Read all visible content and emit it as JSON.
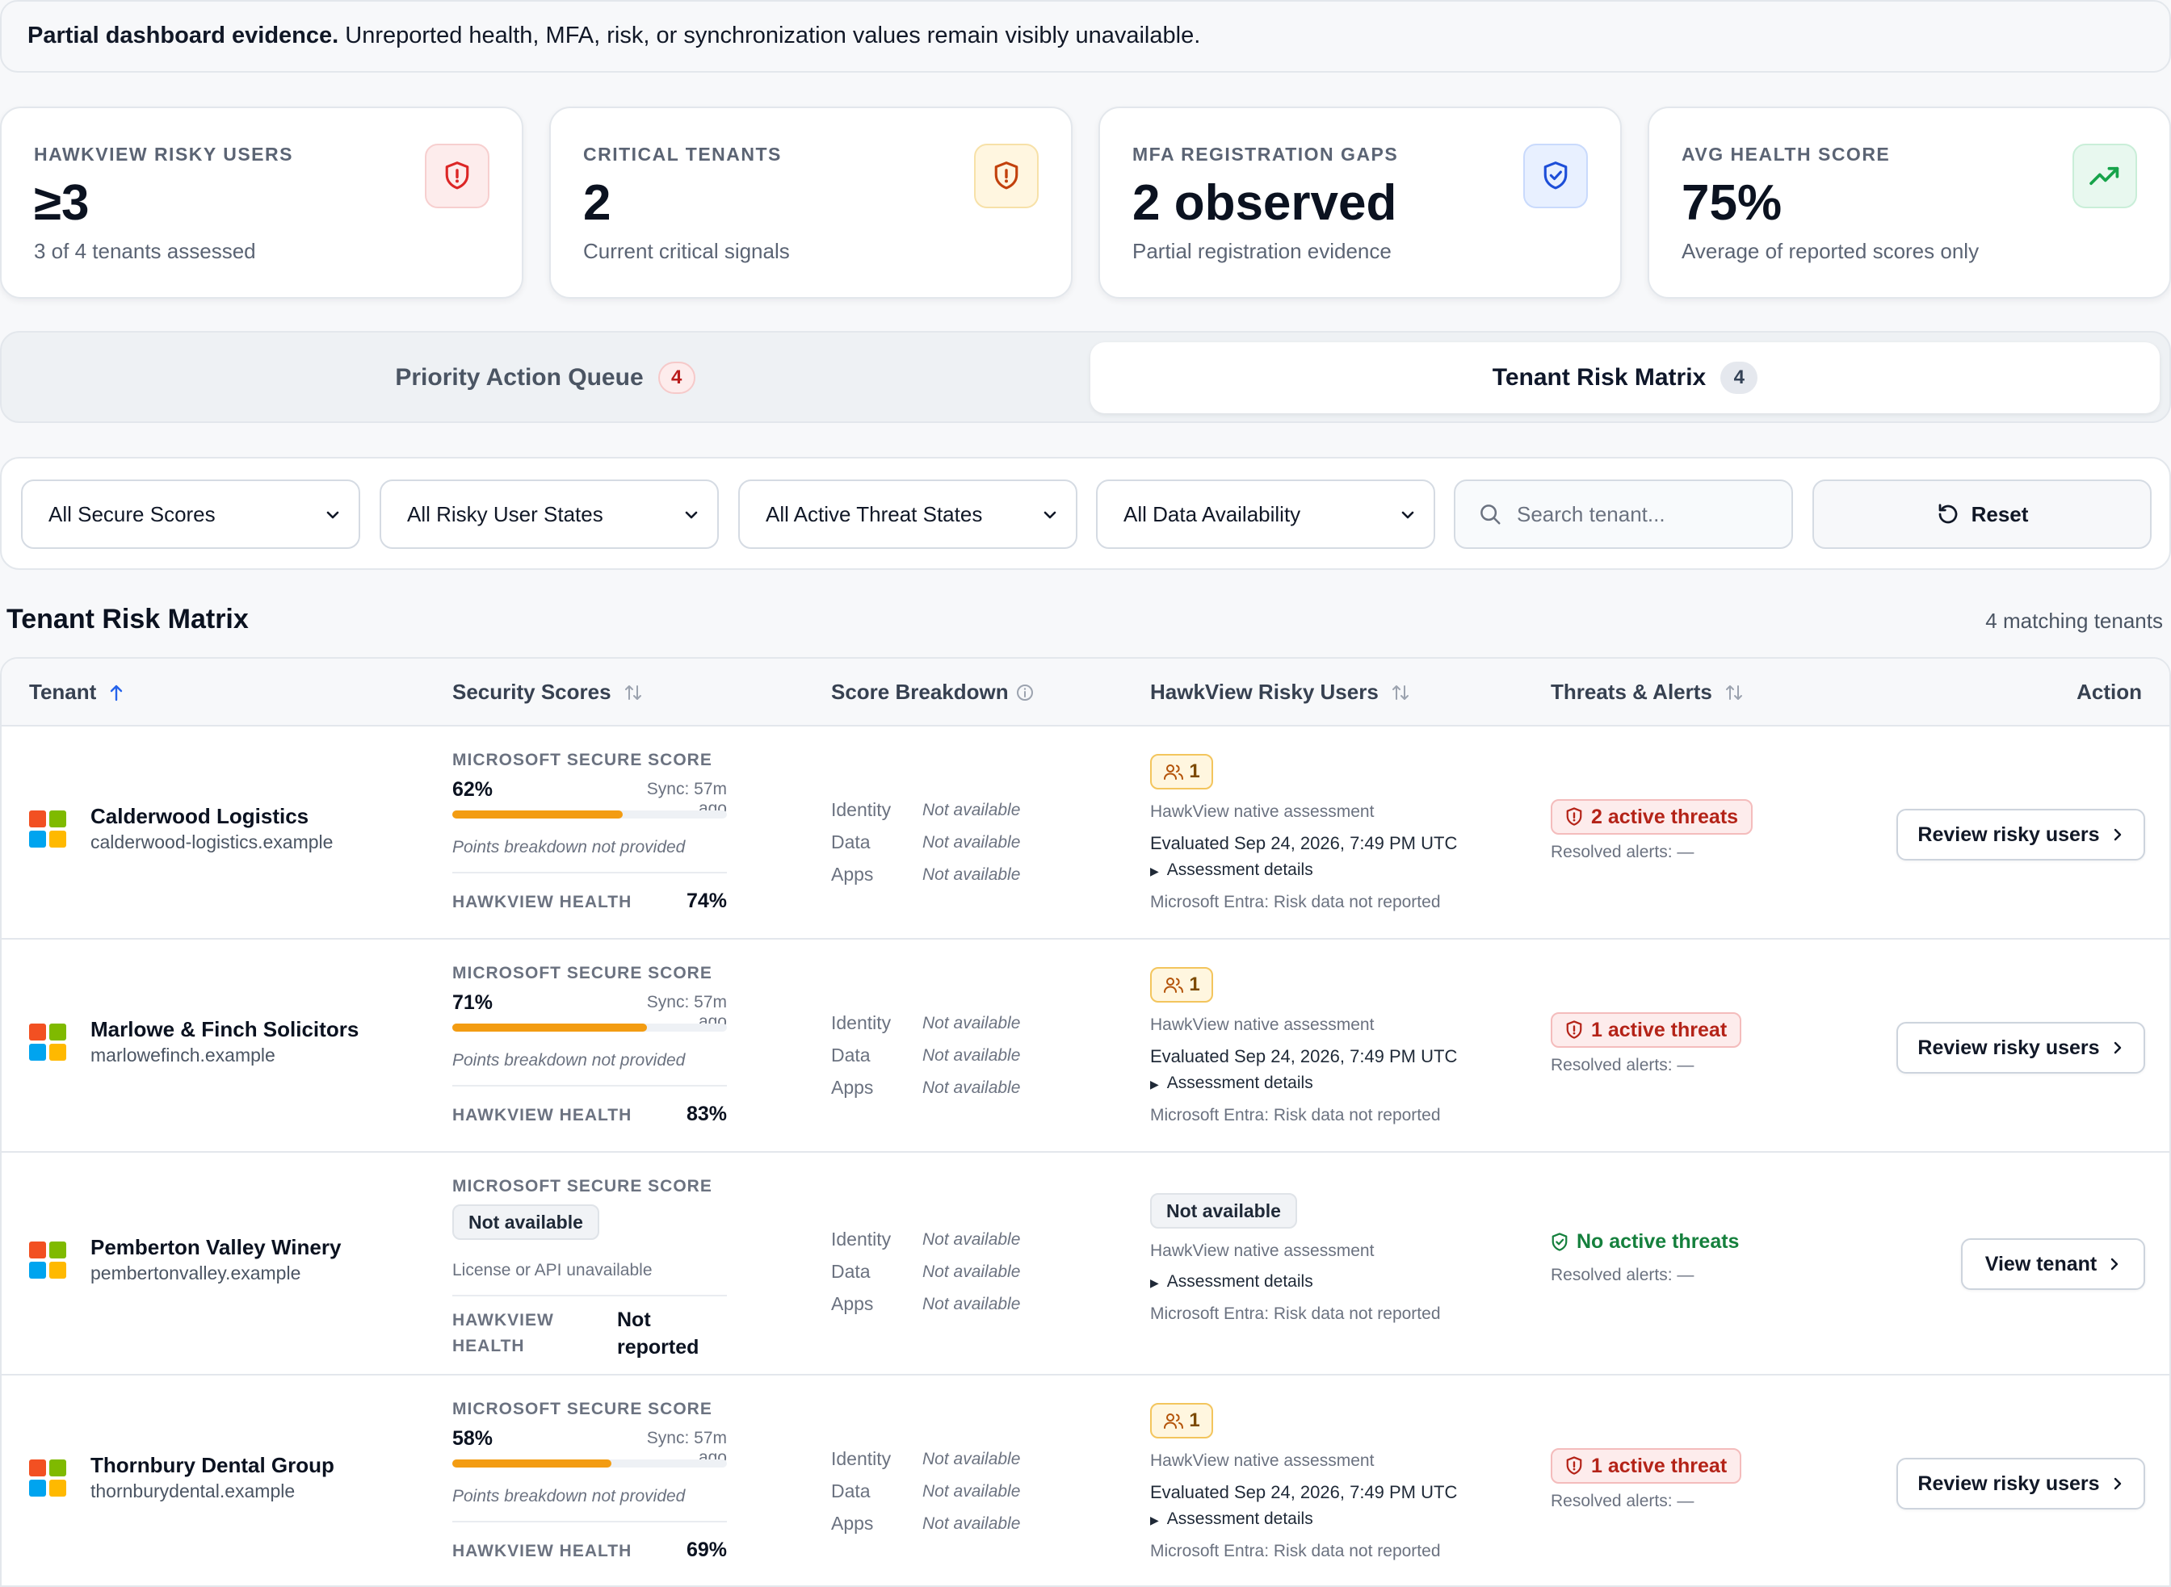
{
  "notice": {
    "bold": "Partial dashboard evidence.",
    "text": "Unreported health, MFA, risk, or synchronization values remain visibly unavailable."
  },
  "kpis": [
    {
      "label": "HAWKVIEW RISKY USERS",
      "value": "≥3",
      "note": "3 of 4 tenants assessed",
      "icon": "shield-alert-icon",
      "tone": "#dc2626"
    },
    {
      "label": "CRITICAL TENANTS",
      "value": "2",
      "note": "Current critical signals",
      "icon": "shield-alert-icon",
      "tone": "#c2410c"
    },
    {
      "label": "MFA REGISTRATION GAPS",
      "value": "2 observed",
      "note": "Partial registration evidence",
      "icon": "shield-check-icon",
      "tone": "#1d4ed8"
    },
    {
      "label": "AVG HEALTH SCORE",
      "value": "75%",
      "note": "Average of reported scores only",
      "icon": "trending-up-icon",
      "tone": "#16a34a"
    }
  ],
  "tabs": [
    {
      "label": "Priority Action Queue",
      "count": "4",
      "active": false
    },
    {
      "label": "Tenant Risk Matrix",
      "count": "4",
      "active": true
    }
  ],
  "filters": {
    "secure_scores": "All Secure Scores",
    "risky_user_states": "All Risky User States",
    "active_threat_states": "All Active Threat States",
    "data_availability": "All Data Availability",
    "search_placeholder": "Search tenant...",
    "reset_label": "Reset"
  },
  "section": {
    "title": "Tenant Risk Matrix",
    "matching": "4 matching tenants"
  },
  "columns": {
    "tenant": "Tenant",
    "security_scores": "Security Scores",
    "score_breakdown": "Score Breakdown",
    "risky_users": "HawkView Risky Users",
    "threats": "Threats & Alerts",
    "action": "Action"
  },
  "labels": {
    "mss": "MICROSOFT SECURE SCORE",
    "hawkview_health": "HAWKVIEW HEALTH",
    "hawkview_health_l1": "HAWKVIEW",
    "hawkview_health_l2": "HEALTH",
    "identity": "Identity",
    "data": "Data",
    "apps": "Apps",
    "not_available_italic": "Not available",
    "native": "HawkView native assessment",
    "assessment_details": "Assessment details",
    "entra": "Microsoft Entra: Risk data not reported",
    "resolved": "Resolved alerts: —",
    "points_note": "Points breakdown not provided"
  },
  "rows": [
    {
      "name": "Calderwood Logistics",
      "domain": "calderwood-logistics.example",
      "secure_score": "62%",
      "secure_score_fraction": 0.62,
      "sync": "Sync: 57m ago",
      "health": "74%",
      "risky_count": "1",
      "evaluated": "Evaluated Sep 24, 2026, 7:49 PM UTC",
      "threats": "2 active threats",
      "action": "Review risky users"
    },
    {
      "name": "Marlowe & Finch Solicitors",
      "domain": "marlowefinch.example",
      "secure_score": "71%",
      "secure_score_fraction": 0.71,
      "sync": "Sync: 57m ago",
      "health": "83%",
      "risky_count": "1",
      "evaluated": "Evaluated Sep 24, 2026, 7:49 PM UTC",
      "threats": "1 active threat",
      "action": "Review risky users"
    },
    {
      "name": "Pemberton Valley Winery",
      "domain": "pembertonvalley.example",
      "secure_score_na": "Not available",
      "license_note": "License or API unavailable",
      "health_l1": "Not",
      "health_l2": "reported",
      "risky_na": "Not available",
      "threats_none": "No active threats",
      "action": "View tenant"
    },
    {
      "name": "Thornbury Dental Group",
      "domain": "thornburydental.example",
      "secure_score": "58%",
      "secure_score_fraction": 0.58,
      "sync": "Sync: 57m ago",
      "health": "69%",
      "risky_count": "1",
      "evaluated": "Evaluated Sep 24, 2026, 7:49 PM UTC",
      "threats": "1 active threat",
      "action": "Review risky users"
    }
  ]
}
